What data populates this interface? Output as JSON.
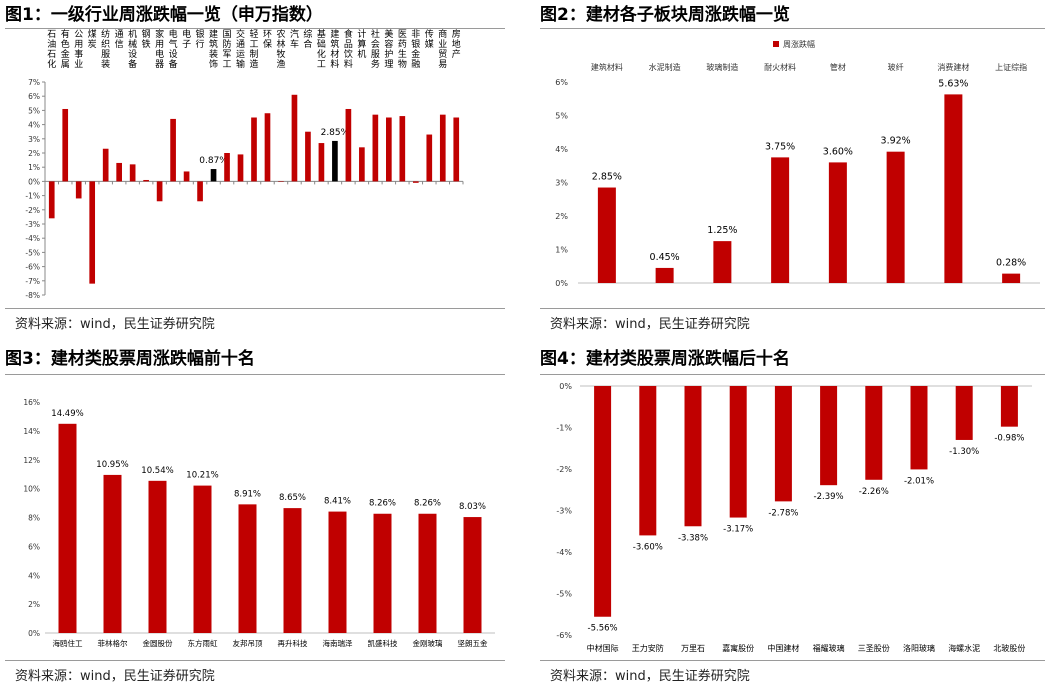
{
  "source_text": "资料来源：wind，民生证券研究院",
  "bar_color": "#c00000",
  "highlight_color": "#000000",
  "chart_data": [
    {
      "id": "fig1",
      "type": "bar",
      "title": "图1：一级行业周涨跌幅一览（申万指数）",
      "categories": [
        "石油石化",
        "有色金属",
        "公用事业",
        "煤炭",
        "纺织服装",
        "通信",
        "机械设备",
        "钢铁",
        "家用电器",
        "电气设备",
        "电子",
        "银行",
        "建筑装饰",
        "国防军工",
        "交通运输",
        "轻工制造",
        "环保",
        "农林牧渔",
        "汽车",
        "综合",
        "基础化工",
        "建筑材料",
        "食品饮料",
        "计算机",
        "社会服务",
        "美容护理",
        "医药生物",
        "非银金融",
        "传媒",
        "商业贸易",
        "房地产"
      ],
      "values": [
        -2.6,
        5.1,
        -1.2,
        -7.2,
        2.3,
        1.3,
        1.2,
        0.1,
        -1.4,
        4.4,
        0.7,
        -1.4,
        0.87,
        2.0,
        1.9,
        4.5,
        4.8,
        0.0,
        6.1,
        3.5,
        2.7,
        2.85,
        5.1,
        2.4,
        4.7,
        4.5,
        4.6,
        -0.1,
        3.3,
        4.7,
        4.5
      ],
      "highlight": [
        "建筑装饰",
        "建筑材料"
      ],
      "data_labels": {
        "建筑装饰": "0.87%",
        "建筑材料": "2.85%"
      },
      "yticks": [
        "7%",
        "6%",
        "5%",
        "4%",
        "3%",
        "2%",
        "1%",
        "0%",
        "-1%",
        "-2%",
        "-3%",
        "-4%",
        "-5%",
        "-6%",
        "-7%",
        "-8%"
      ],
      "ylim": [
        -8,
        7
      ]
    },
    {
      "id": "fig2",
      "type": "bar",
      "title": "图2：建材各子板块周涨跌幅一览",
      "legend": "周涨跌幅",
      "categories": [
        "建筑材料",
        "水泥制造",
        "玻璃制造",
        "耐火材料",
        "管材",
        "玻纤",
        "消费建材",
        "上证综指"
      ],
      "values": [
        2.85,
        0.45,
        1.25,
        3.75,
        3.6,
        3.92,
        5.63,
        0.28
      ],
      "data_labels": [
        "2.85%",
        "0.45%",
        "1.25%",
        "3.75%",
        "3.60%",
        "3.92%",
        "5.63%",
        "0.28%"
      ],
      "yticks": [
        "6%",
        "5%",
        "4%",
        "3%",
        "2%",
        "1%",
        "0%"
      ],
      "ylim": [
        0,
        6
      ]
    },
    {
      "id": "fig3",
      "type": "bar",
      "title": "图3：建材类股票周涨跌幅前十名",
      "categories": [
        "海鸥住工",
        "菲林格尔",
        "金圆股份",
        "东方雨虹",
        "友邦吊顶",
        "再升科技",
        "海南瑞泽",
        "凯盛科技",
        "金刚玻璃",
        "坚朗五金"
      ],
      "values": [
        14.49,
        10.95,
        10.54,
        10.21,
        8.91,
        8.65,
        8.41,
        8.26,
        8.26,
        8.03
      ],
      "data_labels": [
        "14.49%",
        "10.95%",
        "10.54%",
        "10.21%",
        "8.91%",
        "8.65%",
        "8.41%",
        "8.26%",
        "8.26%",
        "8.03%"
      ],
      "yticks": [
        "16%",
        "14%",
        "12%",
        "10%",
        "8%",
        "6%",
        "4%",
        "2%",
        "0%"
      ],
      "ylim": [
        0,
        16
      ]
    },
    {
      "id": "fig4",
      "type": "bar",
      "title": "图4：建材类股票周涨跌幅后十名",
      "categories": [
        "中材国际",
        "王力安防",
        "万里石",
        "嘉寓股份",
        "中国建材",
        "福耀玻璃",
        "三圣股份",
        "洛阳玻璃",
        "海螺水泥",
        "北玻股份"
      ],
      "values": [
        -5.56,
        -3.6,
        -3.38,
        -3.17,
        -2.78,
        -2.39,
        -2.26,
        -2.01,
        -1.3,
        -0.98
      ],
      "data_labels": [
        "-5.56%",
        "-3.60%",
        "-3.38%",
        "-3.17%",
        "-2.78%",
        "-2.39%",
        "-2.26%",
        "-2.01%",
        "-1.30%",
        "-0.98%"
      ],
      "yticks": [
        "0%",
        "-1%",
        "-2%",
        "-3%",
        "-4%",
        "-5%",
        "-6%"
      ],
      "ylim": [
        -6,
        0
      ]
    }
  ]
}
